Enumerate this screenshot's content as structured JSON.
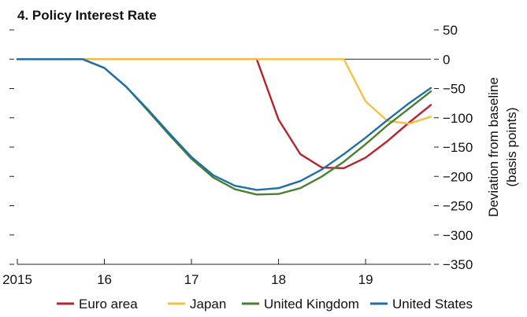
{
  "chart_data": {
    "type": "line",
    "title": "4. Policy Interest Rate",
    "xlabel": "",
    "ylabel_line1": "Deviation from baseline",
    "ylabel_line2": "(basis points)",
    "xlim": [
      2015,
      2019.75
    ],
    "ylim": [
      -350,
      50
    ],
    "x_ticks": [
      2015,
      2016,
      2017,
      2018,
      2019
    ],
    "x_tick_labels": [
      "2015",
      "16",
      "17",
      "18",
      "19"
    ],
    "y_ticks": [
      50,
      0,
      -50,
      -100,
      -150,
      -200,
      -250,
      -300,
      -350
    ],
    "y_tick_labels": [
      "50",
      "0",
      "−50",
      "−100",
      "−150",
      "−200",
      "−250",
      "−300",
      "−350"
    ],
    "zero_line": true,
    "legend_position": "bottom",
    "series": [
      {
        "name": "Euro area",
        "color": "#b5232f",
        "x": [
          2015,
          2015.25,
          2015.5,
          2015.75,
          2016,
          2016.25,
          2016.5,
          2016.75,
          2017,
          2017.25,
          2017.5,
          2017.75,
          2018,
          2018.25,
          2018.5,
          2018.75,
          2019,
          2019.25,
          2019.5,
          2019.75
        ],
        "y": [
          0,
          0,
          0,
          0,
          0,
          0,
          0,
          0,
          0,
          0,
          0,
          0,
          -103,
          -162,
          -185,
          -186,
          -168,
          -140,
          -108,
          -78
        ]
      },
      {
        "name": "Japan",
        "color": "#f6c141",
        "x": [
          2015,
          2015.25,
          2015.5,
          2015.75,
          2016,
          2016.25,
          2016.5,
          2016.75,
          2017,
          2017.25,
          2017.5,
          2017.75,
          2018,
          2018.25,
          2018.5,
          2018.75,
          2019,
          2019.25,
          2019.5,
          2019.75
        ],
        "y": [
          0,
          0,
          0,
          0,
          0,
          0,
          0,
          0,
          0,
          0,
          0,
          0,
          0,
          0,
          0,
          0,
          -72,
          -105,
          -110,
          -98
        ]
      },
      {
        "name": "United Kingdom",
        "color": "#4a7f32",
        "x": [
          2015,
          2015.25,
          2015.5,
          2015.75,
          2016,
          2016.25,
          2016.5,
          2016.75,
          2017,
          2017.25,
          2017.5,
          2017.75,
          2018,
          2018.25,
          2018.5,
          2018.75,
          2019,
          2019.25,
          2019.5,
          2019.75
        ],
        "y": [
          0,
          0,
          0,
          0,
          -15,
          -47,
          -88,
          -130,
          -170,
          -202,
          -222,
          -231,
          -230,
          -220,
          -200,
          -175,
          -145,
          -113,
          -84,
          -55
        ]
      },
      {
        "name": "United States",
        "color": "#1f6ea8",
        "x": [
          2015,
          2015.25,
          2015.5,
          2015.75,
          2016,
          2016.25,
          2016.5,
          2016.75,
          2017,
          2017.25,
          2017.5,
          2017.75,
          2018,
          2018.25,
          2018.5,
          2018.75,
          2019,
          2019.25,
          2019.5,
          2019.75
        ],
        "y": [
          0,
          0,
          0,
          0,
          -15,
          -47,
          -86,
          -127,
          -167,
          -198,
          -216,
          -223,
          -220,
          -208,
          -188,
          -162,
          -134,
          -104,
          -75,
          -49
        ]
      }
    ]
  }
}
